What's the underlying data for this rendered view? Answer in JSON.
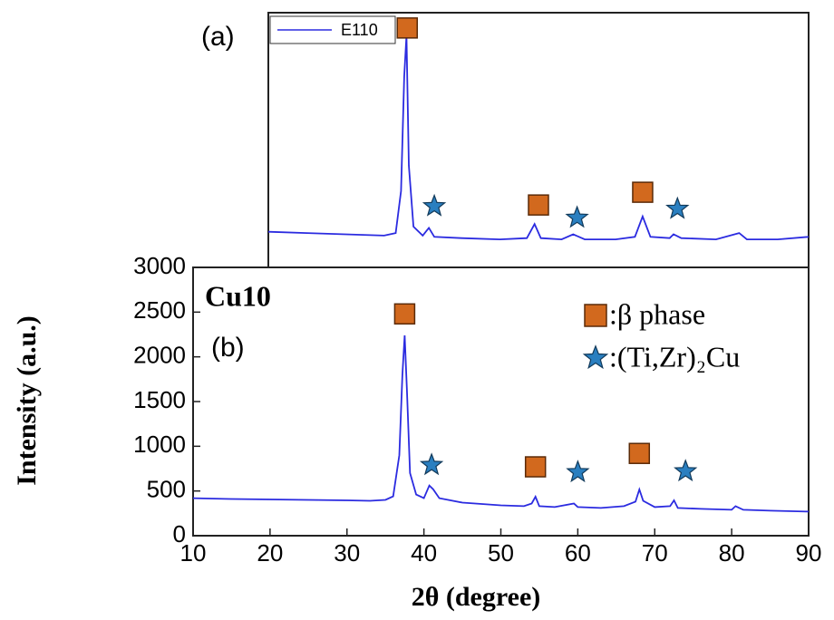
{
  "chart_data": [
    {
      "type": "line",
      "panel_label": "(a)",
      "x": [
        20,
        25,
        30,
        35,
        36.5,
        37.2,
        37.6,
        37.9,
        38.2,
        38.8,
        40,
        40.8,
        41.5,
        45,
        50,
        53.5,
        54.5,
        55.3,
        58,
        59.5,
        61,
        65,
        67.5,
        68.5,
        69.5,
        72,
        72.5,
        73.5,
        78,
        81,
        82,
        86,
        90
      ],
      "series": [
        {
          "name": "E110",
          "color": "#2b2be0",
          "values": [
            14,
            13.5,
            13,
            12.5,
            13.5,
            30,
            75,
            91,
            40,
            16,
            12.5,
            15.5,
            12,
            11.5,
            11,
            11.5,
            17,
            11.5,
            11,
            13,
            11,
            11,
            12,
            20,
            12,
            11.5,
            13,
            11.5,
            11,
            13.5,
            11,
            11,
            12
          ]
        }
      ],
      "xlim": [
        20,
        90
      ],
      "ylim": [
        0,
        100
      ],
      "markers": [
        {
          "shape": "square",
          "x": 38,
          "y": 94
        },
        {
          "shape": "star",
          "x": 41.5,
          "y": 24
        },
        {
          "shape": "square",
          "x": 55,
          "y": 24.5
        },
        {
          "shape": "star",
          "x": 60,
          "y": 19.5
        },
        {
          "shape": "square",
          "x": 68.5,
          "y": 29.5
        },
        {
          "shape": "star",
          "x": 73,
          "y": 23
        }
      ]
    },
    {
      "type": "line",
      "title": "Cu10",
      "panel_label": "(b)",
      "x_label": "2θ (degree)",
      "y_label": "Intensity (a.u.)",
      "x": [
        10,
        15,
        20,
        25,
        30,
        33,
        35,
        36,
        36.8,
        37.2,
        37.5,
        37.8,
        38.2,
        39,
        40,
        40.7,
        41.2,
        42,
        45,
        50,
        53,
        54,
        54.5,
        55,
        57,
        59.5,
        60,
        63,
        66,
        67.5,
        68,
        68.5,
        70,
        72,
        72.5,
        73,
        76,
        80,
        80.5,
        81.5,
        85,
        90
      ],
      "series": [
        {
          "color": "#2b2be0",
          "values": [
            420,
            410,
            405,
            400,
            395,
            390,
            400,
            440,
            900,
            1800,
            2240,
            1600,
            700,
            460,
            420,
            560,
            520,
            420,
            370,
            340,
            330,
            360,
            436,
            330,
            320,
            360,
            320,
            310,
            330,
            380,
            517,
            390,
            320,
            330,
            395,
            310,
            300,
            290,
            330,
            290,
            280,
            270
          ]
        }
      ],
      "xlim": [
        10,
        90
      ],
      "ylim": [
        0,
        3000
      ],
      "xticks": [
        10,
        20,
        30,
        40,
        50,
        60,
        70,
        80,
        90
      ],
      "yticks": [
        0,
        500,
        1000,
        1500,
        2000,
        2500,
        3000
      ],
      "markers": [
        {
          "shape": "square",
          "x": 37.5,
          "y": 2480
        },
        {
          "shape": "star",
          "x": 41,
          "y": 790
        },
        {
          "shape": "square",
          "x": 54.5,
          "y": 770
        },
        {
          "shape": "star",
          "x": 60,
          "y": 710
        },
        {
          "shape": "square",
          "x": 68,
          "y": 920
        },
        {
          "shape": "star",
          "x": 74,
          "y": 720
        }
      ],
      "legend": [
        {
          "shape": "square",
          "label": ":β phase"
        },
        {
          "shape": "star",
          "label": ":(Ti,Zr)₂Cu"
        }
      ],
      "square_color": "#d2691e",
      "star_color": "#2a7fc0"
    }
  ]
}
